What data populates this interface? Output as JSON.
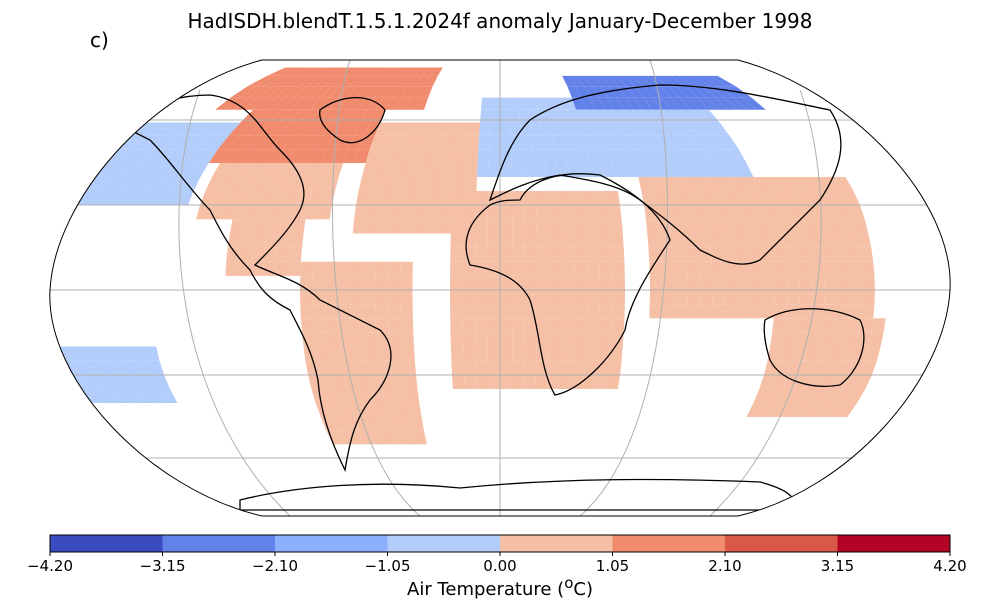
{
  "figure": {
    "title": "HadISDH.blendT.1.5.1.2024f anomaly January-December 1998",
    "panel_label": "c)"
  },
  "colorbar": {
    "label_prefix": "Air Temperature (",
    "label_unit_sup": "o",
    "label_suffix": "C)",
    "ticks": [
      "−4.20",
      "−3.15",
      "−2.10",
      "−1.05",
      "0.00",
      "1.05",
      "2.10",
      "3.15",
      "4.20"
    ],
    "bins": [
      {
        "from": -4.2,
        "to": -3.15,
        "color": "#3b4cc0"
      },
      {
        "from": -3.15,
        "to": -2.1,
        "color": "#6282ea"
      },
      {
        "from": -2.1,
        "to": -1.05,
        "color": "#8db0fe"
      },
      {
        "from": -1.05,
        "to": 0.0,
        "color": "#b3cdfb"
      },
      {
        "from": 0.0,
        "to": 1.05,
        "color": "#f5c0a6"
      },
      {
        "from": 1.05,
        "to": 2.1,
        "color": "#f08b6e"
      },
      {
        "from": 2.1,
        "to": 3.15,
        "color": "#d95847"
      },
      {
        "from": 3.15,
        "to": 4.2,
        "color": "#b40426"
      }
    ]
  },
  "chart_data": {
    "type": "heatmap",
    "projection": "Robinson",
    "grid_resolution_deg": 5,
    "value_field": "air temperature anomaly (°C)",
    "anomaly_regions": [
      {
        "region": "Canadian Arctic / Greenland",
        "lon": [
          -150,
          -40
        ],
        "lat": [
          65,
          85
        ],
        "value": 1.6
      },
      {
        "region": "Northern Canada",
        "lon": [
          -130,
          -60
        ],
        "lat": [
          45,
          65
        ],
        "value": 1.6
      },
      {
        "region": "Alaska / North Pacific",
        "lon": [
          -180,
          -130
        ],
        "lat": [
          30,
          60
        ],
        "value": -0.5
      },
      {
        "region": "United States",
        "lon": [
          -125,
          -70
        ],
        "lat": [
          25,
          45
        ],
        "value": 0.5
      },
      {
        "region": "Central America",
        "lon": [
          -110,
          -80
        ],
        "lat": [
          5,
          25
        ],
        "value": 0.5
      },
      {
        "region": "South America",
        "lon": [
          -80,
          -35
        ],
        "lat": [
          -55,
          10
        ],
        "value": 0.5
      },
      {
        "region": "North Atlantic",
        "lon": [
          -60,
          -10
        ],
        "lat": [
          20,
          60
        ],
        "value": 0.5
      },
      {
        "region": "Europe",
        "lon": [
          -10,
          40
        ],
        "lat": [
          40,
          70
        ],
        "value": -0.5
      },
      {
        "region": "Siberia",
        "lon": [
          40,
          140
        ],
        "lat": [
          65,
          80
        ],
        "value": -2.6
      },
      {
        "region": "Central Asia",
        "lon": [
          40,
          110
        ],
        "lat": [
          40,
          65
        ],
        "value": -0.5
      },
      {
        "region": "Africa",
        "lon": [
          -20,
          50
        ],
        "lat": [
          -35,
          35
        ],
        "value": 0.5
      },
      {
        "region": "South / Southeast Asia",
        "lon": [
          60,
          150
        ],
        "lat": [
          -10,
          40
        ],
        "value": 0.5
      },
      {
        "region": "Australia",
        "lon": [
          110,
          155
        ],
        "lat": [
          -45,
          -10
        ],
        "value": 0.5
      },
      {
        "region": "South Pacific",
        "lon": [
          -180,
          -140
        ],
        "lat": [
          -40,
          -20
        ],
        "value": -0.5
      }
    ]
  }
}
